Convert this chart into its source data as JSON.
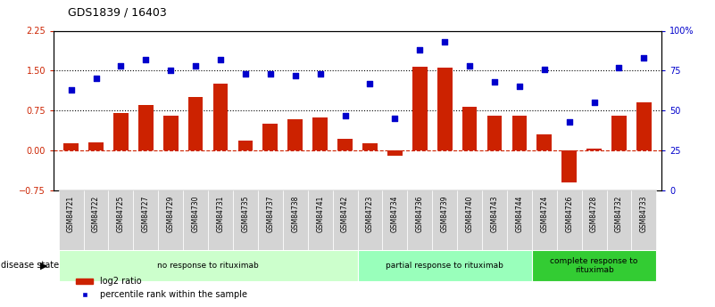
{
  "title": "GDS1839 / 16403",
  "samples": [
    "GSM84721",
    "GSM84722",
    "GSM84725",
    "GSM84727",
    "GSM84729",
    "GSM84730",
    "GSM84731",
    "GSM84735",
    "GSM84737",
    "GSM84738",
    "GSM84741",
    "GSM84742",
    "GSM84723",
    "GSM84734",
    "GSM84736",
    "GSM84739",
    "GSM84740",
    "GSM84743",
    "GSM84744",
    "GSM84724",
    "GSM84726",
    "GSM84728",
    "GSM84732",
    "GSM84733"
  ],
  "log2_ratio": [
    0.13,
    0.15,
    0.7,
    0.85,
    0.65,
    1.0,
    1.25,
    0.18,
    0.5,
    0.58,
    0.62,
    0.22,
    0.14,
    -0.1,
    1.58,
    1.55,
    0.82,
    0.65,
    0.65,
    0.3,
    -0.6,
    0.04,
    0.65,
    0.9
  ],
  "percentile_rank": [
    63,
    70,
    78,
    82,
    75,
    78,
    82,
    73,
    73,
    72,
    73,
    47,
    67,
    45,
    88,
    93,
    78,
    68,
    65,
    76,
    43,
    55,
    77,
    83
  ],
  "groups": [
    {
      "label": "no response to rituximab",
      "start": 0,
      "end": 12,
      "color": "#ccffcc"
    },
    {
      "label": "partial response to rituximab",
      "start": 12,
      "end": 19,
      "color": "#99ffbb"
    },
    {
      "label": "complete response to\nrituximab",
      "start": 19,
      "end": 24,
      "color": "#33cc33"
    }
  ],
  "ylim_left": [
    -0.75,
    2.25
  ],
  "ylim_right": [
    0,
    100
  ],
  "yticks_left": [
    -0.75,
    0,
    0.75,
    1.5,
    2.25
  ],
  "yticks_right": [
    0,
    25,
    50,
    75,
    100
  ],
  "hlines": [
    0.75,
    1.5
  ],
  "bar_color": "#cc2200",
  "scatter_color": "#0000cc",
  "zero_line_color": "#cc2200",
  "disease_state_label": "disease state"
}
